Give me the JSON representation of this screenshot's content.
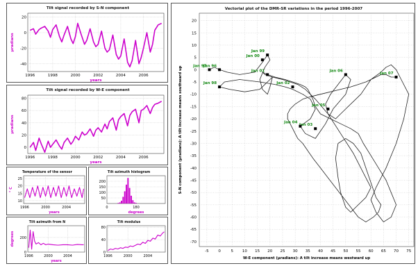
{
  "colors": {
    "signal": "#cc00cc",
    "trajectory": "#222222",
    "annotation": "#118811",
    "grid": "#bbbbbb"
  },
  "chart_data": [
    {
      "id": "sn",
      "type": "line",
      "title": "Tilt signal recorded by S-N component",
      "xlabel": "years",
      "ylabel": "µradians",
      "x_ticks": [
        "1996",
        "1998",
        "2000",
        "2002",
        "2004",
        "2006"
      ],
      "y_ticks": [
        "20",
        "0",
        "-20",
        "-40"
      ],
      "xlim": [
        1995.8,
        2007.8
      ],
      "ylim": [
        -50,
        25
      ],
      "series": [
        {
          "x": [
            1996,
            1996.3,
            1996.5,
            1996.8,
            1997,
            1997.3,
            1997.6,
            1997.8,
            1998,
            1998.3,
            1998.6,
            1998.8,
            1999,
            1999.3,
            1999.6,
            1999.8,
            2000,
            2000.2,
            2000.5,
            2000.8,
            2001,
            2001.3,
            2001.6,
            2001.8,
            2002,
            2002.3,
            2002.6,
            2002.8,
            2003,
            2003.3,
            2003.6,
            2003.8,
            2004,
            2004.3,
            2004.6,
            2004.8,
            2005,
            2005.3,
            2005.6,
            2005.8,
            2006,
            2006.3,
            2006.6,
            2006.8,
            2007,
            2007.3,
            2007.6
          ],
          "values": [
            3,
            5,
            -2,
            4,
            6,
            8,
            2,
            -6,
            4,
            10,
            -5,
            -12,
            -3,
            8,
            -8,
            -14,
            -5,
            12,
            -2,
            -15,
            -10,
            5,
            -12,
            -18,
            -15,
            2,
            -20,
            -25,
            -22,
            -3,
            -28,
            -34,
            -30,
            -8,
            -38,
            -44,
            -36,
            -10,
            -40,
            -32,
            -20,
            0,
            -25,
            -15,
            3,
            10,
            12
          ]
        }
      ]
    },
    {
      "id": "we",
      "type": "line",
      "title": "Tilt signal recorded by W-E component",
      "xlabel": "years",
      "ylabel": "µradians",
      "x_ticks": [
        "1996",
        "1998",
        "2000",
        "2002",
        "2004",
        "2006"
      ],
      "y_ticks": [
        "80",
        "60",
        "40",
        "20",
        "0"
      ],
      "xlim": [
        1995.8,
        2007.8
      ],
      "ylim": [
        -10,
        85
      ],
      "series": [
        {
          "x": [
            1996,
            1996.3,
            1996.5,
            1996.8,
            1997,
            1997.3,
            1997.6,
            1997.8,
            1998,
            1998.3,
            1998.6,
            1998.8,
            1999,
            1999.3,
            1999.6,
            1999.8,
            2000,
            2000.3,
            2000.6,
            2000.8,
            2001,
            2001.3,
            2001.6,
            2001.8,
            2002,
            2002.3,
            2002.6,
            2002.8,
            2003,
            2003.3,
            2003.6,
            2003.8,
            2004,
            2004.3,
            2004.6,
            2004.8,
            2005,
            2005.3,
            2005.6,
            2005.8,
            2006,
            2006.3,
            2006.6,
            2006.8,
            2007,
            2007.3,
            2007.6
          ],
          "values": [
            0,
            8,
            -5,
            15,
            5,
            -8,
            10,
            0,
            5,
            12,
            2,
            -3,
            8,
            15,
            5,
            10,
            18,
            12,
            25,
            20,
            22,
            30,
            18,
            28,
            32,
            25,
            38,
            30,
            42,
            48,
            28,
            45,
            50,
            55,
            35,
            52,
            58,
            62,
            40,
            60,
            62,
            68,
            55,
            65,
            70,
            72,
            75
          ]
        }
      ]
    },
    {
      "id": "temp",
      "type": "line",
      "title": "Temperature of the sensor",
      "xlabel": "years",
      "ylabel": "° C",
      "x_ticks": [
        "1996",
        "2000",
        "2004"
      ],
      "y_ticks": [
        "25",
        "20",
        "15",
        "10"
      ],
      "xlim": [
        1995.8,
        2007.5
      ],
      "ylim": [
        8,
        27
      ],
      "series": [
        {
          "x": [
            1996,
            1996.5,
            1997,
            1997.5,
            1998,
            1998.5,
            1999,
            1999.5,
            2000,
            2000.5,
            2001,
            2001.5,
            2002,
            2002.5,
            2003,
            2003.5,
            2004,
            2004.5,
            2005,
            2005.5,
            2006,
            2006.5,
            2007,
            2007.3
          ],
          "values": [
            12,
            18,
            12,
            19,
            13,
            20,
            12,
            19,
            13,
            20,
            12,
            19,
            13,
            20,
            12,
            19,
            13,
            20,
            12,
            18,
            13,
            19,
            12,
            18
          ]
        }
      ]
    },
    {
      "id": "hist",
      "type": "bar",
      "title": "Tilt azimuth histogram",
      "xlabel": "degrees",
      "x_ticks": [
        "0",
        "180"
      ],
      "y_ticks": [
        "200",
        "150",
        "100",
        "50"
      ],
      "xlim": [
        0,
        360
      ],
      "ylim": [
        0,
        250
      ],
      "categories": [
        70,
        80,
        90,
        100,
        110,
        120,
        130,
        140,
        150,
        160,
        170,
        180
      ],
      "values": [
        5,
        10,
        25,
        60,
        110,
        170,
        230,
        140,
        70,
        30,
        10,
        5
      ]
    },
    {
      "id": "azim",
      "type": "line",
      "title": "Tilt azimuth from N",
      "xlabel": "years",
      "ylabel": "degrees",
      "x_ticks": [
        "1996",
        "2000",
        "2004"
      ],
      "y_ticks": [
        "200",
        "0"
      ],
      "xlim": [
        1995.8,
        2007.5
      ],
      "ylim": [
        0,
        360
      ],
      "series": [
        {
          "x": [
            1996,
            1996.3,
            1996.6,
            1996.9,
            1997.2,
            1997.5,
            1998,
            1998.5,
            1999,
            1999.5,
            2000,
            2001,
            2002,
            2003,
            2004,
            2005,
            2006,
            2007,
            2007.3
          ],
          "values": [
            60,
            300,
            40,
            280,
            150,
            110,
            130,
            100,
            120,
            100,
            110,
            100,
            95,
            100,
            100,
            95,
            105,
            100,
            100
          ]
        }
      ]
    },
    {
      "id": "mod",
      "type": "line",
      "title": "Tilt modulus",
      "x_ticks": [
        "1996",
        "2000",
        "2004"
      ],
      "y_ticks": [
        "80",
        "40",
        "0"
      ],
      "xlim": [
        1995.8,
        2007.5
      ],
      "ylim": [
        0,
        85
      ],
      "series": [
        {
          "x": [
            1996,
            1996.5,
            1997,
            1997.5,
            1998,
            1998.5,
            1999,
            1999.5,
            2000,
            2000.5,
            2001,
            2001.5,
            2002,
            2002.5,
            2003,
            2003.5,
            2004,
            2004.5,
            2005,
            2005.5,
            2006,
            2006.5,
            2007,
            2007.3
          ],
          "values": [
            5,
            10,
            8,
            12,
            10,
            14,
            12,
            16,
            15,
            20,
            18,
            22,
            26,
            24,
            32,
            28,
            38,
            35,
            45,
            42,
            55,
            52,
            62,
            65
          ]
        }
      ]
    },
    {
      "id": "vec",
      "type": "line",
      "title": "Vectorial plot of the DMR-SR variations in the period 1996-2007",
      "xlabel": "W-E component (µradians): A tilt increase means westward up",
      "ylabel": "S-N component (µradians): A tilt increase means southward up",
      "x_ticks": [
        "-5",
        "0",
        "5",
        "10",
        "15",
        "20",
        "25",
        "30",
        "35",
        "40",
        "45",
        "50",
        "55",
        "60",
        "65",
        "70",
        "75"
      ],
      "y_ticks": [
        "20",
        "15",
        "10",
        "5",
        "0",
        "-5",
        "-10",
        "-15",
        "-20",
        "-25",
        "-30",
        "-35",
        "-40",
        "-45",
        "-50",
        "-55",
        "-60",
        "-65",
        "-70"
      ],
      "xlim": [
        -8,
        77
      ],
      "ylim": [
        -72,
        23
      ],
      "points": [
        {
          "label": "Jan 96",
          "x": 0,
          "y": 0
        },
        {
          "label": "Jan 97",
          "x": -4,
          "y": 0
        },
        {
          "label": "Jan 98",
          "x": 0,
          "y": -7
        },
        {
          "label": "Jan 99",
          "x": 19,
          "y": 6
        },
        {
          "label": "Jan 00",
          "x": 17,
          "y": 4
        },
        {
          "label": "Jan 01",
          "x": 19,
          "y": -2
        },
        {
          "label": "Jan 02",
          "x": 29,
          "y": -7
        },
        {
          "label": "Jan 03",
          "x": 38,
          "y": -24
        },
        {
          "label": "Jan 04",
          "x": 32,
          "y": -23
        },
        {
          "label": "Jan 05",
          "x": 43,
          "y": -16
        },
        {
          "label": "Jan 06",
          "x": 50,
          "y": -2
        },
        {
          "label": "Jan 07",
          "x": 70,
          "y": -3
        }
      ],
      "series": [
        {
          "x": [
            -4,
            -2,
            0,
            3,
            8,
            14,
            17,
            19,
            20,
            18,
            16,
            17,
            19,
            20,
            21,
            19,
            16,
            10,
            4,
            0,
            2,
            8,
            16,
            22,
            26,
            29,
            33,
            36,
            38,
            36,
            32,
            34,
            38,
            42,
            45,
            50,
            52,
            50,
            47,
            44,
            42,
            43,
            46,
            50,
            56,
            60,
            64,
            66,
            68,
            70,
            72,
            75,
            73,
            70,
            66,
            62,
            60,
            62,
            65,
            68,
            70,
            68,
            66,
            63,
            60,
            57,
            55,
            52,
            48,
            44,
            40,
            38,
            37,
            36,
            35,
            34,
            32,
            29,
            26,
            22,
            19,
            17,
            18,
            21,
            25,
            28,
            31,
            34,
            38,
            43,
            48,
            53,
            57,
            60,
            58,
            55,
            52,
            50,
            48,
            47,
            46,
            47,
            50,
            53,
            56,
            58,
            60,
            62,
            64,
            63,
            61,
            58,
            55,
            52,
            49,
            46,
            43,
            40,
            37,
            35,
            33,
            31,
            30,
            29,
            28,
            27,
            27,
            28,
            30,
            33,
            36,
            40,
            44,
            48,
            52,
            55,
            58,
            60,
            62,
            64,
            66,
            68,
            69,
            70
          ],
          "values": [
            0,
            1,
            0,
            -1,
            -2,
            -1,
            3,
            6,
            4,
            1,
            -4,
            -8,
            -10,
            -7,
            -3,
            -5,
            -8,
            -9,
            -8,
            -7,
            -5,
            -4,
            -5,
            -6,
            -7,
            -8,
            -10,
            -12,
            -16,
            -20,
            -23,
            -26,
            -28,
            -22,
            -16,
            -10,
            -4,
            -2,
            -6,
            -10,
            -14,
            -18,
            -20,
            -16,
            -10,
            -4,
            -1,
            1,
            2,
            0,
            -4,
            -10,
            -20,
            -30,
            -40,
            -48,
            -53,
            -58,
            -62,
            -60,
            -55,
            -50,
            -45,
            -40,
            -35,
            -30,
            -26,
            -24,
            -22,
            -20,
            -18,
            -15,
            -12,
            -10,
            -8,
            -7,
            -6,
            -5,
            -4,
            -3,
            -2,
            -1,
            -2,
            -3,
            -4,
            -5,
            -6,
            -8,
            -12,
            -18,
            -26,
            -34,
            -42,
            -48,
            -52,
            -55,
            -58,
            -56,
            -50,
            -44,
            -36,
            -30,
            -28,
            -30,
            -34,
            -40,
            -46,
            -52,
            -55,
            -58,
            -60,
            -62,
            -60,
            -56,
            -52,
            -48,
            -44,
            -40,
            -36,
            -33,
            -30,
            -28,
            -26,
            -24,
            -22,
            -20,
            -18,
            -16,
            -14,
            -12,
            -11,
            -10,
            -9,
            -8,
            -7,
            -6,
            -5,
            -4,
            -3,
            -2,
            -2,
            -3,
            -3,
            -3
          ]
        }
      ]
    }
  ]
}
